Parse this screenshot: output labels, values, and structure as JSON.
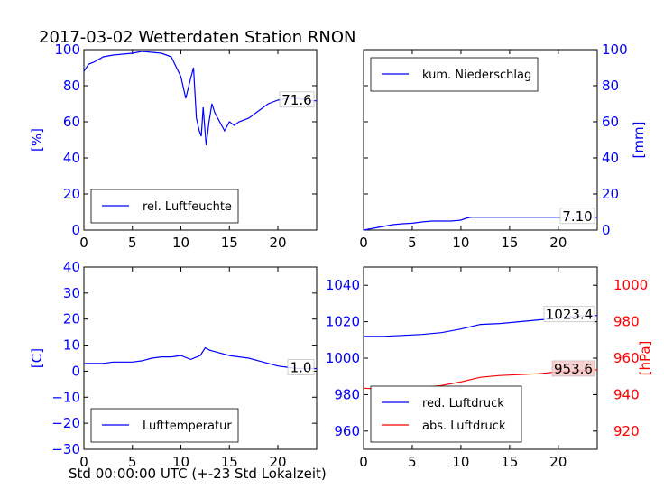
{
  "title": "2017-03-02 Wetterdaten Station RNON",
  "xcaption": "Std 00:00:00 UTC (+-23 Std Lokalzeit)",
  "colors": {
    "blue": "#0000ff",
    "red": "#ff0000",
    "black": "#000000"
  },
  "chart_data": [
    {
      "type": "line",
      "panel": "top-left",
      "ylabel": "[%]",
      "ylabel_color": "#0000ff",
      "xlim": [
        0,
        24
      ],
      "ylim": [
        0,
        100
      ],
      "xticks": [
        "0",
        "5",
        "10",
        "15",
        "20"
      ],
      "yticks": [
        "0",
        "20",
        "40",
        "60",
        "80",
        "100"
      ],
      "legend": "bottom-left",
      "annotation": "71.6",
      "series": [
        {
          "name": "rel. Luftfeuchte",
          "color": "#0000ff",
          "x": [
            0,
            0.5,
            1,
            2,
            3,
            4,
            5,
            6,
            7,
            8,
            9,
            10,
            10.5,
            11,
            11.3,
            11.6,
            11.9,
            12.1,
            12.3,
            12.6,
            12.9,
            13.2,
            13.5,
            14,
            14.5,
            15,
            15.5,
            16,
            17,
            18,
            19,
            20,
            21,
            22,
            23,
            24
          ],
          "y": [
            88,
            92,
            93,
            96,
            97,
            97.5,
            98,
            99,
            98.5,
            98,
            96,
            85,
            73,
            84,
            90,
            62,
            55,
            52,
            68,
            47,
            60,
            70,
            65,
            60,
            55,
            60,
            58,
            60,
            62,
            66,
            70,
            72,
            73,
            73,
            72,
            71.6
          ]
        }
      ]
    },
    {
      "type": "line",
      "panel": "top-right",
      "ylabel": "[mm]",
      "ylabel_color": "#0000ff",
      "xlim": [
        0,
        24
      ],
      "ylim": [
        0,
        100
      ],
      "xticks": [
        "0",
        "5",
        "10",
        "15",
        "20"
      ],
      "yticks": [
        "0",
        "20",
        "40",
        "60",
        "80",
        "100"
      ],
      "legend": "top-left",
      "annotation": "7.10",
      "series": [
        {
          "name": "kum. Niederschlag",
          "color": "#0000ff",
          "x": [
            0,
            1,
            2,
            3,
            4,
            5,
            6,
            7,
            8,
            9,
            10,
            10.5,
            11,
            12,
            14,
            16,
            18,
            20,
            22,
            24
          ],
          "y": [
            0,
            1,
            2,
            3,
            3.5,
            3.8,
            4.5,
            5,
            5,
            5,
            5.5,
            6.5,
            7.1,
            7.1,
            7.1,
            7.1,
            7.1,
            7.1,
            7.1,
            7.1
          ]
        }
      ]
    },
    {
      "type": "line",
      "panel": "bottom-left",
      "ylabel": "[C]",
      "ylabel_color": "#0000ff",
      "xlim": [
        0,
        24
      ],
      "ylim": [
        -30,
        40
      ],
      "xticks": [
        "0",
        "5",
        "10",
        "15",
        "20"
      ],
      "yticks": [
        "−30",
        "−20",
        "−10",
        "0",
        "10",
        "20",
        "30",
        "40"
      ],
      "legend": "bottom-left",
      "annotation": "1.0",
      "series": [
        {
          "name": "Lufttemperatur",
          "color": "#0000ff",
          "x": [
            0,
            1,
            2,
            3,
            4,
            5,
            6,
            7,
            8,
            9,
            10,
            11,
            12,
            12.5,
            13,
            14,
            15,
            16,
            17,
            18,
            19,
            20,
            21,
            22,
            23,
            24
          ],
          "y": [
            3,
            3,
            3,
            3.5,
            3.5,
            3.5,
            4,
            5,
            5.5,
            5.5,
            6,
            4.5,
            6,
            9,
            8,
            7,
            6,
            5.5,
            5,
            4,
            3,
            2,
            1.5,
            1,
            1,
            1
          ]
        }
      ]
    },
    {
      "type": "line",
      "panel": "bottom-right",
      "ylabel": "[hPa]",
      "ylabel_color": "#ff0000",
      "xlim": [
        0,
        24
      ],
      "ylim_left": [
        950,
        1050
      ],
      "ylim_right": [
        910,
        1010
      ],
      "xticks": [
        "0",
        "5",
        "10",
        "15",
        "20"
      ],
      "yticks_left": [
        "960",
        "980",
        "1000",
        "1020",
        "1040"
      ],
      "yticks_right": [
        "920",
        "940",
        "960",
        "980",
        "1000"
      ],
      "legend": "bottom-left",
      "annotations": [
        "1023.4",
        "953.6"
      ],
      "series": [
        {
          "name": "red. Luftdruck",
          "color": "#0000ff",
          "axis": "left",
          "x": [
            0,
            2,
            4,
            6,
            8,
            10,
            12,
            14,
            16,
            18,
            20,
            22,
            24
          ],
          "y": [
            1012,
            1012,
            1012.5,
            1013,
            1014,
            1016,
            1018.5,
            1019,
            1020,
            1021,
            1022,
            1023,
            1023.4
          ]
        },
        {
          "name": "abs. Luftdruck",
          "color": "#ff0000",
          "axis": "right",
          "x": [
            0,
            2,
            4,
            6,
            8,
            10,
            12,
            14,
            16,
            18,
            20,
            22,
            24
          ],
          "y": [
            943.5,
            943,
            943.5,
            944,
            945,
            947,
            949.5,
            950.5,
            951,
            951.5,
            952.5,
            953,
            953.6
          ]
        }
      ]
    }
  ]
}
